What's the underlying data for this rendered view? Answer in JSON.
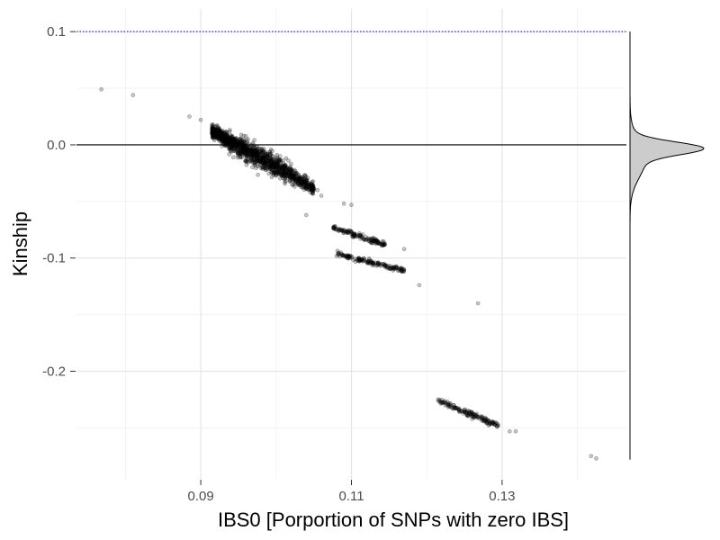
{
  "chart_data": {
    "type": "scatter",
    "title": "",
    "xlabel": "IBS0 [Porportion of SNPs with zero IBS]",
    "ylabel": "Kinship",
    "xlim": [
      0.0735,
      0.1465
    ],
    "ylim": [
      -0.295,
      0.12
    ],
    "x_ticks": [
      0.09,
      0.11,
      0.13
    ],
    "x_tick_labels": [
      "0.09",
      "0.11",
      "0.13"
    ],
    "y_ticks": [
      0.1,
      0.0,
      -0.1,
      -0.2
    ],
    "y_tick_labels": [
      "0.1",
      "0.0",
      "-0.1",
      "-0.2"
    ],
    "grid": true,
    "legend": "none",
    "point_color": "#000000",
    "reference_lines": [
      {
        "y": 0.1,
        "style": "dotted",
        "color": "#0000cc"
      },
      {
        "y": 0.0,
        "style": "solid",
        "color": "#000000"
      }
    ],
    "clusters": [
      {
        "x_range": [
          0.0915,
          0.105
        ],
        "y_at_start": 0.012,
        "y_at_end": -0.038,
        "spread": 0.0085,
        "count": 1400
      },
      {
        "x_range": [
          0.1075,
          0.1145
        ],
        "y_at_start": -0.073,
        "y_at_end": -0.088,
        "spread": 0.0022,
        "count": 140
      },
      {
        "x_range": [
          0.108,
          0.117
        ],
        "y_at_start": -0.096,
        "y_at_end": -0.111,
        "spread": 0.0022,
        "count": 160
      },
      {
        "x_range": [
          0.1215,
          0.1295
        ],
        "y_at_start": -0.226,
        "y_at_end": -0.248,
        "spread": 0.0025,
        "count": 150
      }
    ],
    "points": [
      {
        "x": 0.0768,
        "y": 0.049
      },
      {
        "x": 0.081,
        "y": 0.044
      },
      {
        "x": 0.0885,
        "y": 0.025
      },
      {
        "x": 0.09,
        "y": 0.022
      },
      {
        "x": 0.0915,
        "y": 0.018
      },
      {
        "x": 0.0918,
        "y": 0.014
      },
      {
        "x": 0.104,
        "y": -0.062
      },
      {
        "x": 0.1055,
        "y": -0.04
      },
      {
        "x": 0.106,
        "y": -0.045
      },
      {
        "x": 0.109,
        "y": -0.052
      },
      {
        "x": 0.11,
        "y": -0.053
      },
      {
        "x": 0.117,
        "y": -0.092
      },
      {
        "x": 0.119,
        "y": -0.124
      },
      {
        "x": 0.1268,
        "y": -0.14
      },
      {
        "x": 0.131,
        "y": -0.253
      },
      {
        "x": 0.1318,
        "y": -0.253
      },
      {
        "x": 0.1418,
        "y": -0.275
      },
      {
        "x": 0.1425,
        "y": -0.277
      }
    ],
    "marginal_density": {
      "side": "right",
      "axis": "y",
      "fill": "#cccccc",
      "components": [
        {
          "center": -0.003,
          "sd": 0.0055,
          "weight": 0.8
        },
        {
          "center": -0.013,
          "sd": 0.016,
          "weight": 0.2
        }
      ]
    }
  }
}
